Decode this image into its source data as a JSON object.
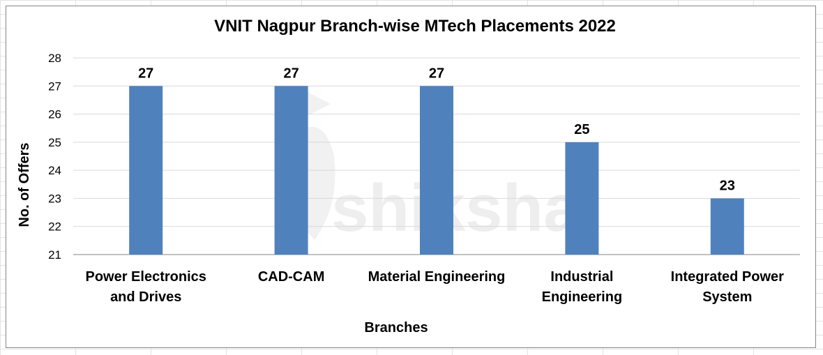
{
  "chart_data": {
    "type": "bar",
    "title": "VNIT Nagpur Branch-wise MTech Placements 2022",
    "xlabel": "Branches",
    "ylabel": "No. of Offers",
    "categories": [
      [
        "Power Electronics",
        "and Drives"
      ],
      [
        "CAD-CAM"
      ],
      [
        "Material Engineering"
      ],
      [
        "Industrial",
        "Engineering"
      ],
      [
        "Integrated Power",
        "System"
      ]
    ],
    "values": [
      27,
      27,
      27,
      25,
      23
    ],
    "data_labels": [
      "27",
      "27",
      "27",
      "25",
      "23"
    ],
    "ylim": [
      21,
      28
    ],
    "yticks": [
      "21",
      "22",
      "23",
      "24",
      "25",
      "26",
      "27",
      "28"
    ],
    "grid": true,
    "legend": "none",
    "colors": {
      "bar": "#4f81bd",
      "grid": "#d9d9d9",
      "axis": "#868686"
    }
  },
  "watermark": "shiksha"
}
